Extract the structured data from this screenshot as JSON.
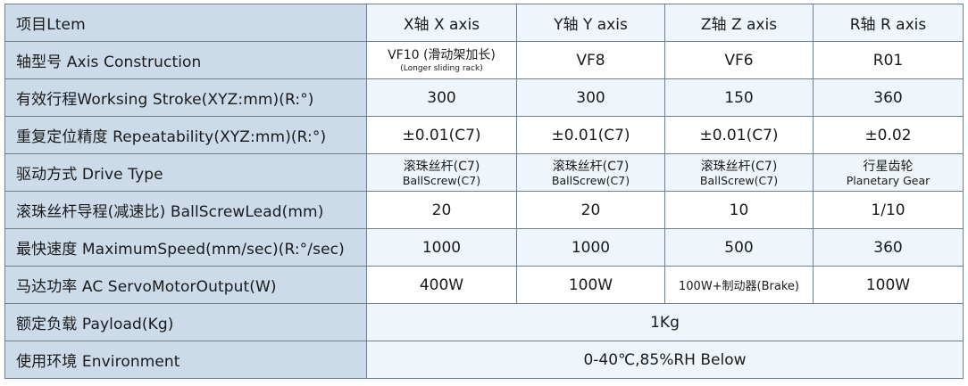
{
  "header": {
    "item": "项目Ltem",
    "x": "X轴 X axis",
    "y": "Y轴 Y axis",
    "z": "Z轴 Z axis",
    "r": "R轴 R axis"
  },
  "rows": {
    "axis_construction": {
      "label": "轴型号 Axis Construction",
      "x_main": "VF10 (滑动架加长)",
      "x_sub": "(Longer sliding rack)",
      "y": "VF8",
      "z": "VF6",
      "r": "R01"
    },
    "working_stroke": {
      "label": "有效行程Worksing Stroke(XYZ:mm)(R:°)",
      "x": "300",
      "y": "300",
      "z": "150",
      "r": "360"
    },
    "repeatability": {
      "label": "重复定位精度 Repeatability(XYZ:mm)(R:°)",
      "x": "±0.01(C7)",
      "y": "±0.01(C7)",
      "z": "±0.01(C7)",
      "r": "±0.02"
    },
    "drive_type": {
      "label": "驱动方式 Drive Type",
      "x_cn": "滚珠丝杆(C7)",
      "x_en": "BallScrew(C7)",
      "y_cn": "滚珠丝杆(C7)",
      "y_en": "BallScrew(C7)",
      "z_cn": "滚珠丝杆(C7)",
      "z_en": "BallScrew(C7)",
      "r_cn": "行星齿轮",
      "r_en": "Planetary Gear"
    },
    "ballscrew_lead": {
      "label": "滚珠丝杆导程(减速比) BallScrewLead(mm)",
      "x": "20",
      "y": "20",
      "z": "10",
      "r": "1/10"
    },
    "max_speed": {
      "label": "最快速度 MaximumSpeed(mm/sec)(R:°/sec)",
      "x": "1000",
      "y": "1000",
      "z": "500",
      "r": "360"
    },
    "motor_output": {
      "label": "马达功率 AC ServoMotorOutput(W)",
      "x": "400W",
      "y": "100W",
      "z": "100W+制动器(Brake)",
      "r": "100W"
    },
    "payload": {
      "label": "额定负载 Payload(Kg)",
      "value": "1Kg"
    },
    "environment": {
      "label": "使用环境 Environment",
      "value": "0-40℃,85%RH Below"
    }
  },
  "colors": {
    "label_bg": "#cbdbe9",
    "alt_row_bg": "#eef6fc",
    "border": "#6f7e8c"
  }
}
